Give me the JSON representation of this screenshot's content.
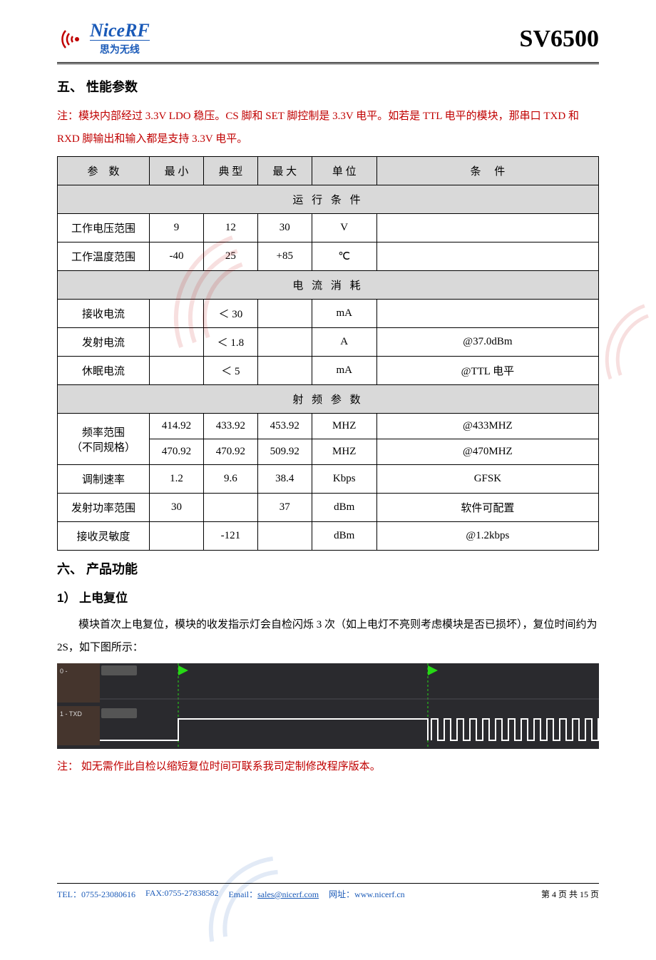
{
  "header": {
    "brand": "NiceRF",
    "brand_sub": "思为无线",
    "product": "SV6500",
    "brand_color": "#1a5ab8"
  },
  "sections": {
    "five_title": "五、 性能参数",
    "note1": "注：模块内部经过 3.3V LDO 稳压。CS 脚和 SET 脚控制是 3.3V 电平。如若是 TTL 电平的模块，那串口 TXD 和 RXD 脚输出和输入都是支持 3.3V 电平。",
    "six_title": "六、 产品功能",
    "sub1_title": "1） 上电复位",
    "sub1_body": "模块首次上电复位，模块的收发指示灯会自检闪烁 3 次（如上电灯不亮则考虑模块是否已损坏），复位时间约为 2S，如下图所示：",
    "note2": "注： 如无需作此自检以缩短复位时间可联系我司定制修改程序版本。"
  },
  "table": {
    "columns": [
      "参　数",
      "最 小",
      "典 型",
      "最 大",
      "单 位",
      "条　 件"
    ],
    "group1": "运 行 条 件",
    "group2": "电 流 消 耗",
    "group3": "射 频 参 数",
    "rows": [
      {
        "g": 1,
        "p": "工作电压范围",
        "min": "9",
        "typ": "12",
        "max": "30",
        "unit": "V",
        "cond": ""
      },
      {
        "g": 1,
        "p": "工作温度范围",
        "min": "-40",
        "typ": "25",
        "max": "+85",
        "unit": "℃",
        "cond": ""
      },
      {
        "g": 2,
        "p": "接收电流",
        "min": "",
        "typ": "＜ 30",
        "max": "",
        "unit": "mA",
        "cond": ""
      },
      {
        "g": 2,
        "p": "发射电流",
        "min": "",
        "typ": "＜ 1.8",
        "max": "",
        "unit": "A",
        "cond": "@37.0dBm"
      },
      {
        "g": 2,
        "p": "休眠电流",
        "min": "",
        "typ": "＜ 5",
        "max": "",
        "unit": "mA",
        "cond": "@TTL 电平"
      },
      {
        "g": 3,
        "p": "频率范围\n（不同规格）",
        "min": "414.92",
        "typ": "433.92",
        "max": "453.92",
        "unit": "MHZ",
        "cond": "@433MHZ",
        "rowspan": 2
      },
      {
        "g": 3,
        "p": "",
        "min": "470.92",
        "typ": "470.92",
        "max": "509.92",
        "unit": "MHZ",
        "cond": "@470MHZ"
      },
      {
        "g": 3,
        "p": "调制速率",
        "min": "1.2",
        "typ": "9.6",
        "max": "38.4",
        "unit": "Kbps",
        "cond": "GFSK"
      },
      {
        "g": 3,
        "p": "发射功率范围",
        "min": "30",
        "typ": "",
        "max": "37",
        "unit": "dBm",
        "cond": "软件可配置"
      },
      {
        "g": 3,
        "p": "接收灵敏度",
        "min": "",
        "typ": "-121",
        "max": "",
        "unit": "dBm",
        "cond": "@1.2kbps"
      }
    ]
  },
  "waveform": {
    "bg": "#2a2a2e",
    "label_bg": "#45352d",
    "ch0_label": "0 -",
    "ch1_label": "1 - TXD",
    "marker_color": "#26d815",
    "trace_color": "#ffffff",
    "grid_color": "#4a4a50"
  },
  "footer": {
    "tel": "TEL：0755-23080616",
    "fax": "FAX:0755-27838582",
    "email_label": "Email：",
    "email": "sales@nicerf.com",
    "web_label": "网址：",
    "web": "www.nicerf.cn",
    "page": "第 4 页 共 15 页"
  }
}
